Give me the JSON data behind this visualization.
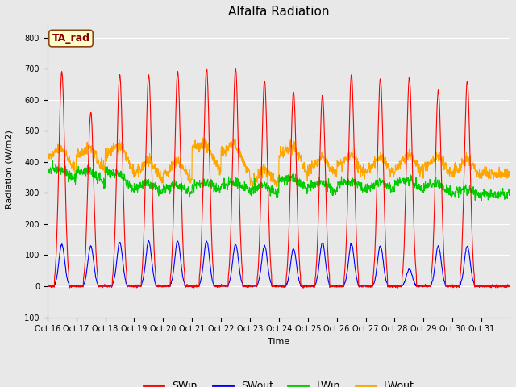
{
  "title": "Alfalfa Radiation",
  "xlabel": "Time",
  "ylabel": "Radiation (W/m2)",
  "ylim": [
    -100,
    850
  ],
  "yticks": [
    -100,
    0,
    100,
    200,
    300,
    400,
    500,
    600,
    700,
    800
  ],
  "xtick_labels": [
    "Oct 16",
    "Oct 17",
    "Oct 18",
    "Oct 19",
    "Oct 20",
    "Oct 21",
    "Oct 22",
    "Oct 23",
    "Oct 24",
    "Oct 25",
    "Oct 26",
    "Oct 27",
    "Oct 28",
    "Oct 29",
    "Oct 30",
    "Oct 31"
  ],
  "series_colors": {
    "SWin": "#FF0000",
    "SWout": "#0000FF",
    "LWin": "#00CC00",
    "LWout": "#FFA500"
  },
  "legend_label": "TA_rad",
  "background_color": "#E8E8E8",
  "plot_bg_color": "#E8E8E8",
  "n_days": 16,
  "points_per_day": 96,
  "SWin_peaks": [
    690,
    560,
    680,
    680,
    690,
    700,
    700,
    660,
    625,
    615,
    680,
    670,
    670,
    630,
    660,
    0
  ],
  "SWout_peaks": [
    135,
    130,
    140,
    145,
    145,
    145,
    135,
    130,
    120,
    140,
    135,
    130,
    55,
    130,
    130,
    0
  ],
  "LWin_day_start": [
    370,
    365,
    370,
    320,
    310,
    320,
    320,
    310,
    340,
    320,
    325,
    315,
    335,
    320,
    300,
    295
  ],
  "LWin_day_end": [
    340,
    330,
    305,
    295,
    300,
    305,
    305,
    295,
    310,
    300,
    310,
    310,
    305,
    295,
    285,
    285
  ],
  "LWout_day_start": [
    415,
    425,
    430,
    360,
    360,
    450,
    440,
    330,
    430,
    375,
    385,
    370,
    380,
    380,
    365,
    360
  ],
  "LWout_day_end": [
    370,
    370,
    370,
    345,
    345,
    365,
    365,
    330,
    365,
    360,
    365,
    360,
    365,
    360,
    355,
    350
  ],
  "title_fontsize": 11,
  "axis_fontsize": 8,
  "tick_fontsize": 7,
  "legend_fontsize": 9
}
